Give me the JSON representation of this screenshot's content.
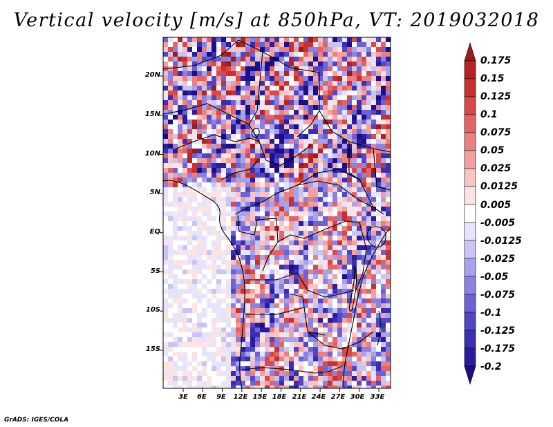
{
  "title": "Vertical velocity [m/s] at 850hPa, VT: 2019032018",
  "credit": "GrADS: IGES/COLA",
  "map": {
    "lat_labels": [
      "20N",
      "15N",
      "10N",
      "5N",
      "EQ",
      "5S",
      "10S",
      "15S"
    ],
    "lon_labels": [
      "3E",
      "6E",
      "9E",
      "12E",
      "15E",
      "18E",
      "21E",
      "24E",
      "27E",
      "30E",
      "33E"
    ]
  },
  "colorbar": {
    "labels": [
      "0.175",
      "0.15",
      "0.125",
      "0.1",
      "0.075",
      "0.05",
      "0.025",
      "0.0125",
      "0.005",
      "-0.005",
      "-0.0125",
      "-0.025",
      "-0.05",
      "-0.075",
      "-0.1",
      "-0.125",
      "-0.175",
      "-0.2"
    ],
    "colors": [
      "#a01a1a",
      "#b52323",
      "#c83131",
      "#d84a4a",
      "#e26464",
      "#ea8080",
      "#f2a0a0",
      "#f8c4c4",
      "#fce4e4",
      "#ffffff",
      "#e6e4fb",
      "#c8c4f4",
      "#a8a2ec",
      "#8a82e2",
      "#6c62d6",
      "#5046c6",
      "#3a2eb2",
      "#2a1c9c",
      "#1c0e86"
    ]
  }
}
